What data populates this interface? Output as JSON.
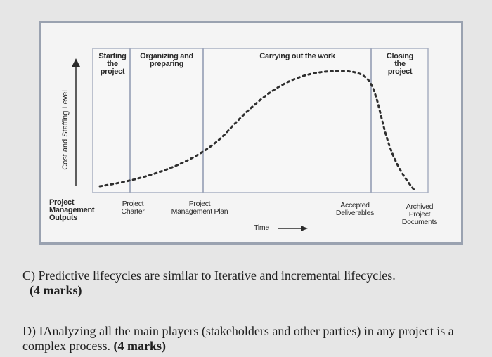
{
  "diagram": {
    "y_axis_label": "Cost and Staffing Level",
    "x_axis_label": "Time",
    "outputs_label": "Project\nManagement\nOutputs",
    "phases": [
      {
        "label": "Starting\nthe\nproject"
      },
      {
        "label": "Organizing and\npreparing"
      },
      {
        "label": "Carrying out the work"
      },
      {
        "label": "Closing\nthe\nproject"
      }
    ],
    "outputs": [
      {
        "label": "Project\nCharter"
      },
      {
        "label": "Project\nManagement Plan"
      },
      {
        "label": "Accepted\nDeliverables"
      },
      {
        "label": "Archived\nProject\nDocuments"
      }
    ]
  },
  "questions": [
    {
      "text": "C) Predictive lifecycles are similar to Iterative and incremental lifecycles.",
      "marks": "(4 marks)"
    },
    {
      "text": "D) IAnalyzing all the main players (stakeholders and other parties) in any project is a complex process.",
      "marks": "(4 marks)"
    }
  ]
}
